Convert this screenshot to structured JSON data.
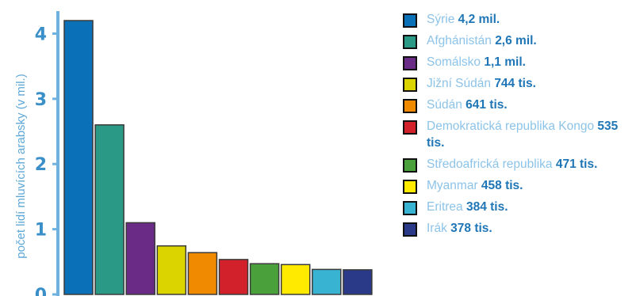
{
  "chart_data": {
    "type": "bar",
    "ylabel": "počet lidí mluvících arabsky (v mil.)",
    "ylim": [
      0,
      4.2
    ],
    "yticks": [
      "0",
      "1",
      "2",
      "3",
      "4"
    ],
    "categories": [
      "Sýrie",
      "Afghánistán",
      "Somálsko",
      "Jižní Súdán",
      "Súdán",
      "Demokratická republika Kongo",
      "Středoafrická republika",
      "Myanmar",
      "Eritrea",
      "Irák"
    ],
    "values": [
      4.2,
      2.6,
      1.1,
      0.744,
      0.641,
      0.535,
      0.471,
      0.458,
      0.384,
      0.378
    ],
    "value_labels": [
      "4,2 mil.",
      "2,6 mil.",
      "1,1 mil.",
      "744 tis.",
      "641 tis.",
      "535 tis.",
      "471 tis.",
      "458 tis.",
      "384 tis.",
      "378 tis."
    ],
    "colors": [
      "#0a70b8",
      "#2a9a86",
      "#6a2b87",
      "#dcd400",
      "#f08a00",
      "#d2212b",
      "#4aa13c",
      "#ffea00",
      "#38b3d2",
      "#2b3a88"
    ],
    "grid": false
  }
}
